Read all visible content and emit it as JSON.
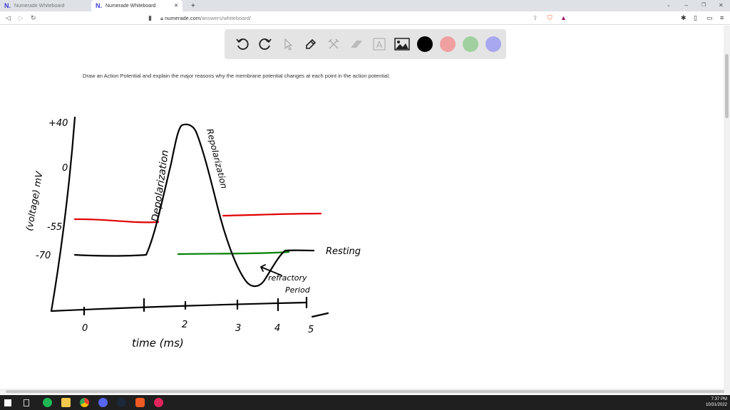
{
  "browser": {
    "tabs": [
      {
        "label": "Numerade Whiteboard",
        "active": false
      },
      {
        "label": "Numerade Whiteboard",
        "active": true
      }
    ],
    "new_tab": "+",
    "url_host": "numerade.com",
    "url_path": "/answers/whiteboard/"
  },
  "whiteboard": {
    "tools": [
      "undo-icon",
      "redo-icon",
      "pointer-icon",
      "pen-icon",
      "tools-icon",
      "eraser-icon",
      "text-icon",
      "image-icon"
    ],
    "colors": [
      "#000000",
      "#f0a0a0",
      "#a0d0a0",
      "#a8a8f0"
    ],
    "prompt": "Draw an Action Potential and explain the major reasons why the membrane potential changes at each point in the action potential."
  },
  "drawing": {
    "y_ticks": [
      "+40",
      "0",
      "-55",
      "-70"
    ],
    "ylabel": "(voltage) mV",
    "x_ticks": [
      "0",
      "2",
      "3",
      "4",
      "5"
    ],
    "xlabel": "time (ms)",
    "labels": {
      "depolarization": "Depolarization",
      "repolarization": "Repolarization",
      "resting": "Resting",
      "refractory1": "refractory",
      "refractory2": "Period"
    },
    "ink_colors": {
      "curve": "#000000",
      "threshold": "#e00000",
      "resting": "#008000"
    }
  },
  "taskbar": {
    "time": "7:37 PM",
    "date": "10/31/2022"
  }
}
